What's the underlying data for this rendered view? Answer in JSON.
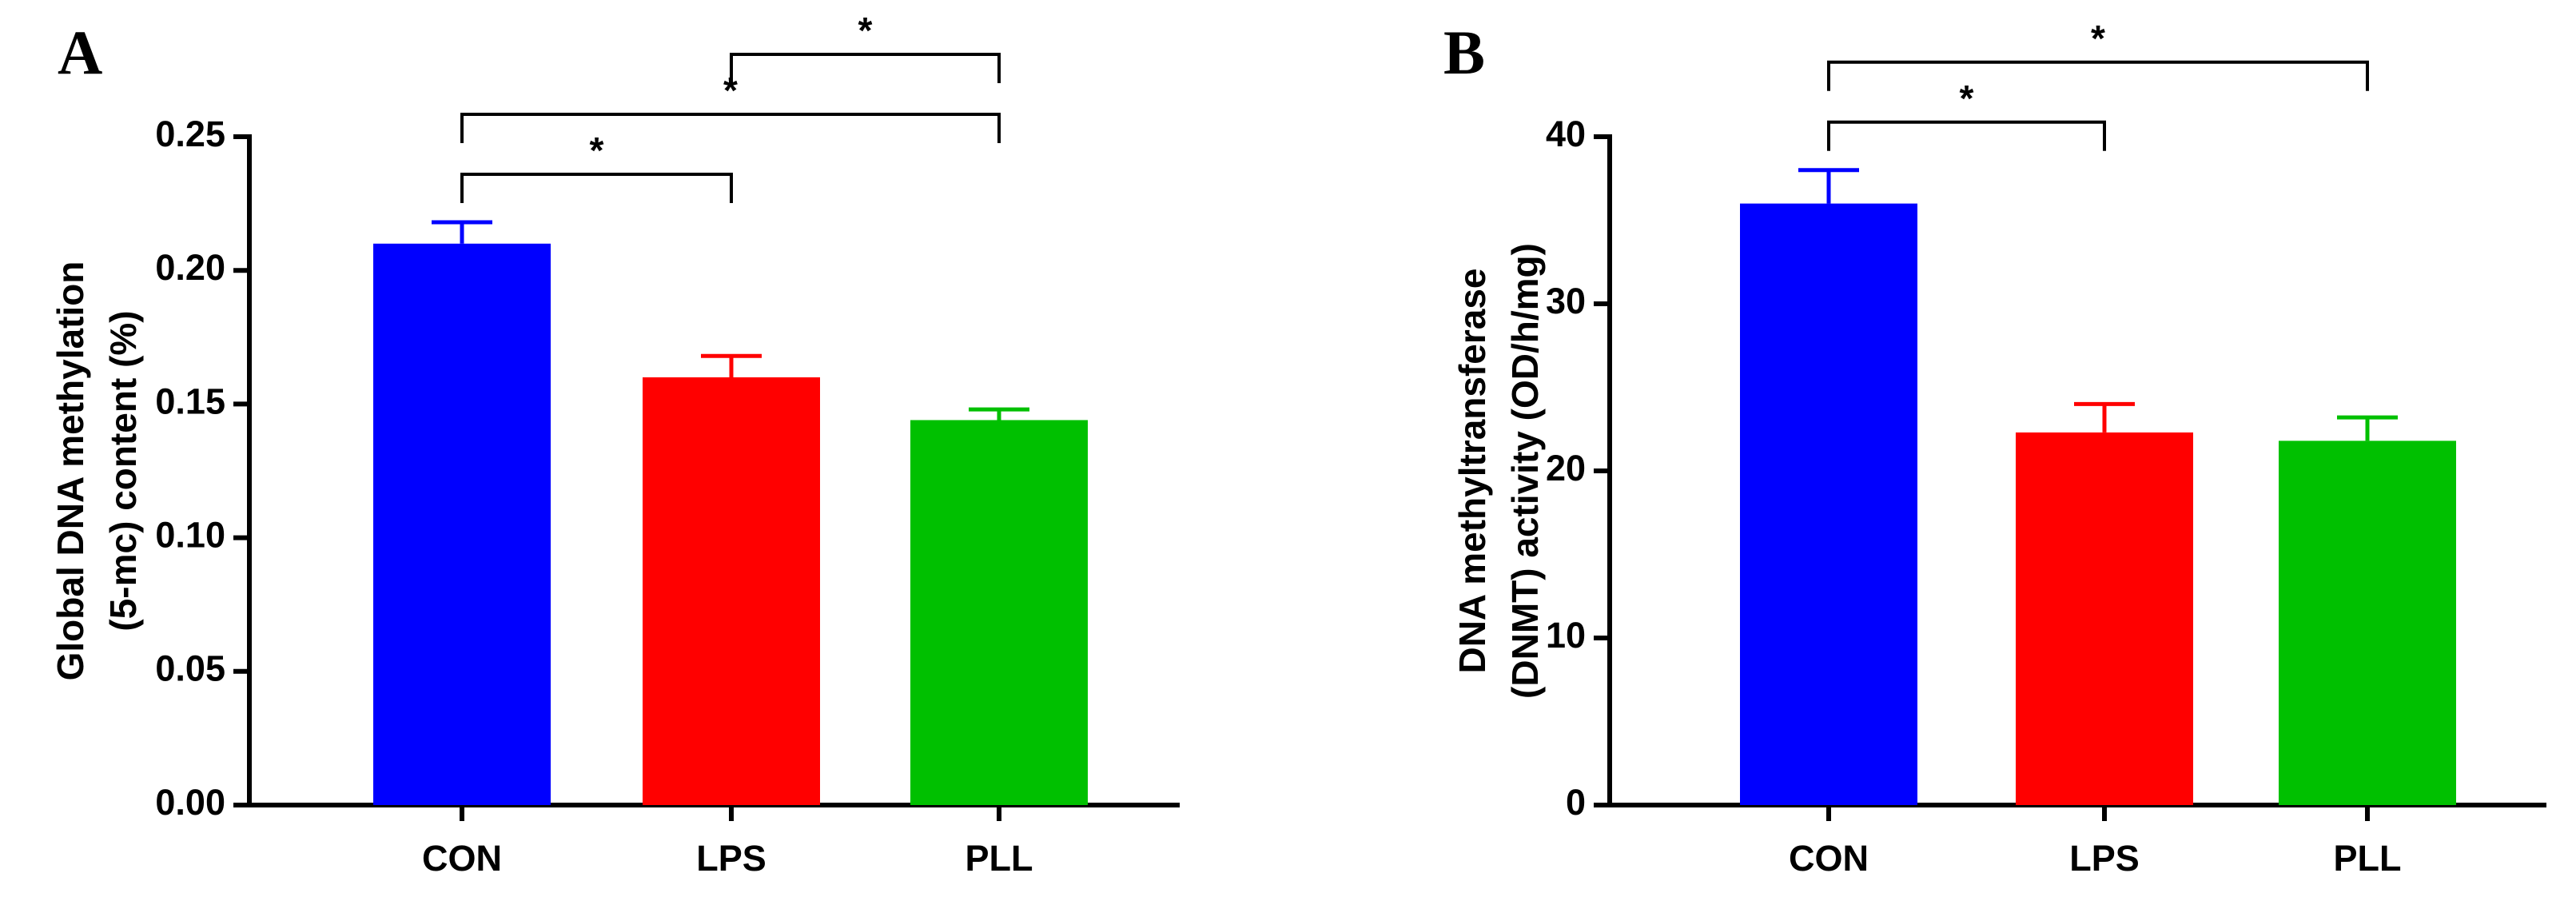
{
  "chart_data": [
    {
      "type": "bar",
      "panel": "A",
      "ylabel": [
        "Global DNA methylation",
        "(5-mc) content (%)"
      ],
      "categories": [
        "CON",
        "LPS",
        "PLL"
      ],
      "values": [
        0.21,
        0.16,
        0.144
      ],
      "errors": [
        0.008,
        0.008,
        0.004
      ],
      "colors": [
        "#0000ff",
        "#ff0000",
        "#00c000"
      ],
      "ylim": [
        0,
        0.25
      ],
      "yticks": [
        {
          "value": 0,
          "label": "0.00"
        },
        0.05,
        {
          "value": 0.1,
          "label": "0.10"
        },
        0.15,
        {
          "value": 0.2,
          "label": "0.20"
        },
        0.25
      ],
      "significance": [
        {
          "pair": [
            "CON",
            "LPS"
          ],
          "label": "*"
        },
        {
          "pair": [
            "CON",
            "PLL"
          ],
          "label": "*"
        },
        {
          "pair": [
            "LPS",
            "PLL"
          ],
          "label": "*"
        }
      ]
    },
    {
      "type": "bar",
      "panel": "B",
      "ylabel": [
        "DNA methyltransferase",
        "(DNMT) activity (OD/h/mg)"
      ],
      "categories": [
        "CON",
        "LPS",
        "PLL"
      ],
      "values": [
        36,
        22.3,
        21.8
      ],
      "errors": [
        2,
        1.7,
        1.4
      ],
      "colors": [
        "#0000ff",
        "#ff0000",
        "#00c000"
      ],
      "ylim": [
        0,
        40
      ],
      "yticks": [
        0,
        10,
        20,
        30,
        40
      ],
      "significance": [
        {
          "pair": [
            "CON",
            "LPS"
          ],
          "label": "*"
        },
        {
          "pair": [
            "CON",
            "PLL"
          ],
          "label": "*"
        }
      ]
    }
  ]
}
